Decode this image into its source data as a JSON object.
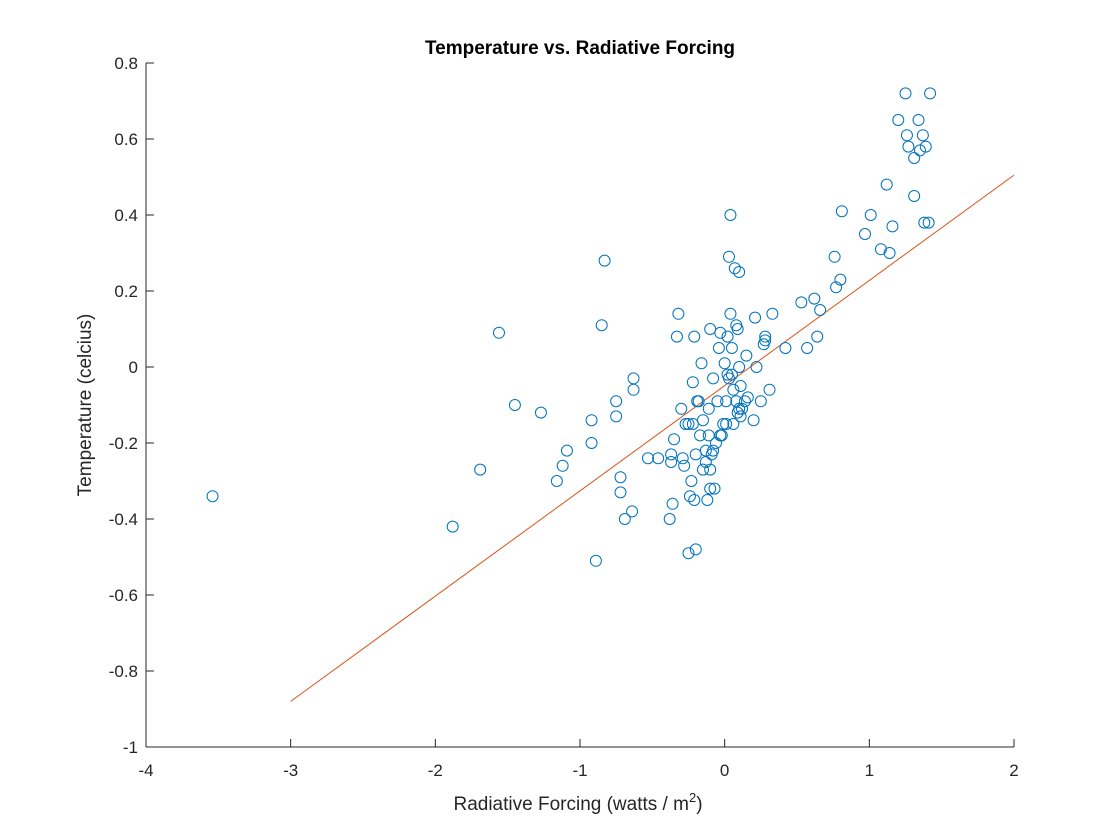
{
  "window": {
    "background": "#ffffff"
  },
  "chart_data": {
    "type": "scatter",
    "title": "Temperature vs. Radiative Forcing",
    "xlabel": "Radiative Forcing (watts / m",
    "xlabel_superscript": "2",
    "xlabel_suffix": ")",
    "ylabel": "Temperature (celcius)",
    "xlim": [
      -4,
      2
    ],
    "ylim": [
      -1,
      0.8
    ],
    "xticks": [
      -4,
      -3,
      -2,
      -1,
      0,
      1,
      2
    ],
    "xtick_labels": [
      "-4",
      "-3",
      "-2",
      "-1",
      "0",
      "1",
      "2"
    ],
    "yticks": [
      -1,
      -0.8,
      -0.6,
      -0.4,
      -0.2,
      0,
      0.2,
      0.4,
      0.6,
      0.8
    ],
    "ytick_labels": [
      "-1",
      "-0.8",
      "-0.6",
      "-0.4",
      "-0.2",
      "0",
      "0.2",
      "0.4",
      "0.6",
      "0.8"
    ],
    "grid": false,
    "legend": "none",
    "series": [
      {
        "kind": "scatter",
        "marker": "open-circle",
        "color": "#0072BD",
        "points": [
          [
            -3.54,
            -0.34
          ],
          [
            -1.88,
            -0.42
          ],
          [
            -1.69,
            -0.27
          ],
          [
            -1.56,
            0.09
          ],
          [
            -1.45,
            -0.1
          ],
          [
            -1.27,
            -0.12
          ],
          [
            -1.16,
            -0.3
          ],
          [
            -1.09,
            -0.22
          ],
          [
            -1.12,
            -0.26
          ],
          [
            -0.92,
            -0.14
          ],
          [
            -0.92,
            -0.2
          ],
          [
            -0.89,
            -0.51
          ],
          [
            -0.85,
            0.11
          ],
          [
            -0.83,
            0.28
          ],
          [
            -0.75,
            -0.09
          ],
          [
            -0.75,
            -0.13
          ],
          [
            -0.72,
            -0.29
          ],
          [
            -0.72,
            -0.33
          ],
          [
            -0.69,
            -0.4
          ],
          [
            -0.64,
            -0.38
          ],
          [
            -0.63,
            -0.03
          ],
          [
            -0.63,
            -0.06
          ],
          [
            -0.53,
            -0.24
          ],
          [
            -0.46,
            -0.24
          ],
          [
            -0.38,
            -0.4
          ],
          [
            -0.37,
            -0.23
          ],
          [
            -0.37,
            -0.25
          ],
          [
            -0.36,
            -0.36
          ],
          [
            -0.35,
            -0.19
          ],
          [
            -0.33,
            0.08
          ],
          [
            -0.32,
            0.14
          ],
          [
            -0.3,
            -0.11
          ],
          [
            -0.29,
            -0.24
          ],
          [
            -0.28,
            -0.26
          ],
          [
            -0.27,
            -0.15
          ],
          [
            -0.25,
            -0.15
          ],
          [
            -0.25,
            -0.49
          ],
          [
            -0.24,
            -0.34
          ],
          [
            -0.23,
            -0.3
          ],
          [
            -0.22,
            -0.15
          ],
          [
            -0.22,
            -0.04
          ],
          [
            -0.21,
            0.08
          ],
          [
            -0.21,
            -0.35
          ],
          [
            -0.2,
            -0.48
          ],
          [
            -0.2,
            -0.23
          ],
          [
            -0.19,
            -0.09
          ],
          [
            -0.18,
            -0.09
          ],
          [
            -0.17,
            -0.18
          ],
          [
            -0.16,
            0.01
          ],
          [
            -0.15,
            -0.14
          ],
          [
            -0.15,
            -0.27
          ],
          [
            -0.13,
            -0.22
          ],
          [
            -0.13,
            -0.25
          ],
          [
            -0.12,
            -0.35
          ],
          [
            -0.11,
            -0.11
          ],
          [
            -0.11,
            -0.18
          ],
          [
            -0.1,
            0.1
          ],
          [
            -0.1,
            -0.27
          ],
          [
            -0.1,
            -0.32
          ],
          [
            -0.09,
            -0.23
          ],
          [
            -0.08,
            -0.03
          ],
          [
            -0.08,
            -0.22
          ],
          [
            -0.07,
            -0.32
          ],
          [
            -0.06,
            -0.2
          ],
          [
            -0.05,
            -0.09
          ],
          [
            -0.04,
            0.05
          ],
          [
            -0.03,
            -0.18
          ],
          [
            -0.03,
            0.09
          ],
          [
            -0.02,
            -0.18
          ],
          [
            -0.01,
            -0.15
          ],
          [
            0.0,
            0.01
          ],
          [
            0.01,
            -0.09
          ],
          [
            0.01,
            -0.15
          ],
          [
            0.02,
            -0.02
          ],
          [
            0.02,
            0.08
          ],
          [
            0.03,
            0.29
          ],
          [
            0.03,
            -0.03
          ],
          [
            0.04,
            0.4
          ],
          [
            0.04,
            0.14
          ],
          [
            0.05,
            0.05
          ],
          [
            0.05,
            -0.02
          ],
          [
            0.06,
            -0.06
          ],
          [
            0.06,
            -0.15
          ],
          [
            0.07,
            0.26
          ],
          [
            0.08,
            0.11
          ],
          [
            0.08,
            -0.09
          ],
          [
            0.09,
            0.1
          ],
          [
            0.09,
            -0.12
          ],
          [
            0.1,
            0.25
          ],
          [
            0.1,
            0.0
          ],
          [
            0.1,
            -0.11
          ],
          [
            0.11,
            -0.05
          ],
          [
            0.11,
            -0.13
          ],
          [
            0.12,
            -0.11
          ],
          [
            0.14,
            -0.09
          ],
          [
            0.15,
            0.03
          ],
          [
            0.16,
            -0.08
          ],
          [
            0.2,
            -0.14
          ],
          [
            0.21,
            0.13
          ],
          [
            0.22,
            0.0
          ],
          [
            0.25,
            -0.09
          ],
          [
            0.27,
            0.06
          ],
          [
            0.28,
            0.07
          ],
          [
            0.28,
            0.08
          ],
          [
            0.31,
            -0.06
          ],
          [
            0.33,
            0.14
          ],
          [
            0.42,
            0.05
          ],
          [
            0.53,
            0.17
          ],
          [
            0.57,
            0.05
          ],
          [
            0.62,
            0.18
          ],
          [
            0.64,
            0.08
          ],
          [
            0.66,
            0.15
          ],
          [
            0.76,
            0.29
          ],
          [
            0.77,
            0.21
          ],
          [
            0.8,
            0.23
          ],
          [
            0.81,
            0.41
          ],
          [
            0.97,
            0.35
          ],
          [
            1.01,
            0.4
          ],
          [
            1.08,
            0.31
          ],
          [
            1.12,
            0.48
          ],
          [
            1.14,
            0.3
          ],
          [
            1.16,
            0.37
          ],
          [
            1.2,
            0.65
          ],
          [
            1.25,
            0.72
          ],
          [
            1.26,
            0.61
          ],
          [
            1.27,
            0.58
          ],
          [
            1.31,
            0.55
          ],
          [
            1.31,
            0.45
          ],
          [
            1.34,
            0.65
          ],
          [
            1.35,
            0.57
          ],
          [
            1.37,
            0.61
          ],
          [
            1.38,
            0.38
          ],
          [
            1.39,
            0.58
          ],
          [
            1.41,
            0.38
          ],
          [
            1.42,
            0.72
          ]
        ]
      },
      {
        "kind": "line",
        "color": "#D95319",
        "x": [
          -3,
          2
        ],
        "y": [
          -0.88,
          0.505
        ]
      }
    ]
  }
}
